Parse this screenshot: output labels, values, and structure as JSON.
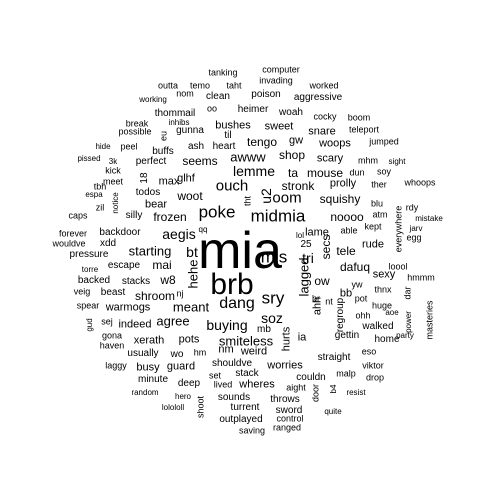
{
  "words": [
    "mia",
    "brb",
    "midmia",
    "poke",
    "mis",
    "sry",
    "dang",
    "ouch",
    "oom",
    "lemme",
    "aegis",
    "soz",
    "buying",
    "awww",
    "lagged",
    "tri",
    "smiteless",
    "u2",
    "bt",
    "hehe",
    "stronk",
    "shop",
    "agree",
    "meant",
    "starting",
    "noooo",
    "squishy",
    "frozen",
    "woot",
    "shroom",
    "mouse",
    "ta",
    "tele",
    "dafuq",
    "tengo",
    "seems",
    "bb",
    "prolly",
    "mai",
    "lame",
    "secs",
    "glhf",
    "max",
    "bear",
    "w8",
    "ow",
    "warmogs",
    "hurts",
    "nm",
    "weird",
    "pots",
    "sweet",
    "bushes",
    "scary",
    "woops",
    "snare",
    "worries",
    "rude",
    "sexy",
    "xerath",
    "guard",
    "busy",
    "indeed",
    "minute",
    "deep",
    "usually",
    "wo",
    "hm",
    "stack",
    "wheres",
    "straight",
    "couldn",
    "throws",
    "sword",
    "turrent",
    "outplayed",
    "gettin",
    "regroup",
    "walked",
    "home",
    "escape",
    "backed",
    "stacks",
    "beast",
    "backdoor",
    "pressure",
    "xdd",
    "silly",
    "todos",
    "perfect",
    "buffs",
    "gunna",
    "ash",
    "heart",
    "thommail",
    "possible",
    "peel",
    "break",
    "clean",
    "poison",
    "aggressive",
    "heimer",
    "woah",
    "cocky",
    "jumped",
    "teleport",
    "boom",
    "kick",
    "meet",
    "caps",
    "forever",
    "wouldve",
    "spear",
    "sej",
    "gona",
    "haven",
    "laggy",
    "random",
    "lolololl",
    "hero",
    "shoot",
    "lived",
    "set",
    "shouldve",
    "sounds",
    "saving",
    "ranged",
    "control",
    "quite",
    "aight",
    "door",
    "malp",
    "drop",
    "resist",
    "viktor",
    "eso",
    "ohh",
    "pot",
    "thnx",
    "huge",
    "loool",
    "hmmm",
    "masteries",
    "mistake",
    "egg",
    "jarv",
    "rdy",
    "whoops",
    "sight",
    "mhm",
    "soy",
    "dun",
    "ther",
    "blu",
    "atm",
    "able",
    "kept",
    "everywhere",
    "power",
    "dar",
    "aoe",
    "party",
    "computer",
    "tanking",
    "invading",
    "worked",
    "taht",
    "temo",
    "nom",
    "outta",
    "working",
    "inhibs",
    "oo",
    "til",
    "gw",
    "ahh",
    "nt",
    "br",
    "ia",
    "mb",
    "18",
    "25",
    "notice",
    "zil",
    "tbh",
    "espa",
    "3k",
    "pissed",
    "hide",
    "eu",
    "nj",
    "veig",
    "torre",
    "gud",
    "yw",
    "b4",
    "tht",
    "lol",
    "qq"
  ],
  "colors": {
    "text": "#000000",
    "background": "#ffffff"
  }
}
